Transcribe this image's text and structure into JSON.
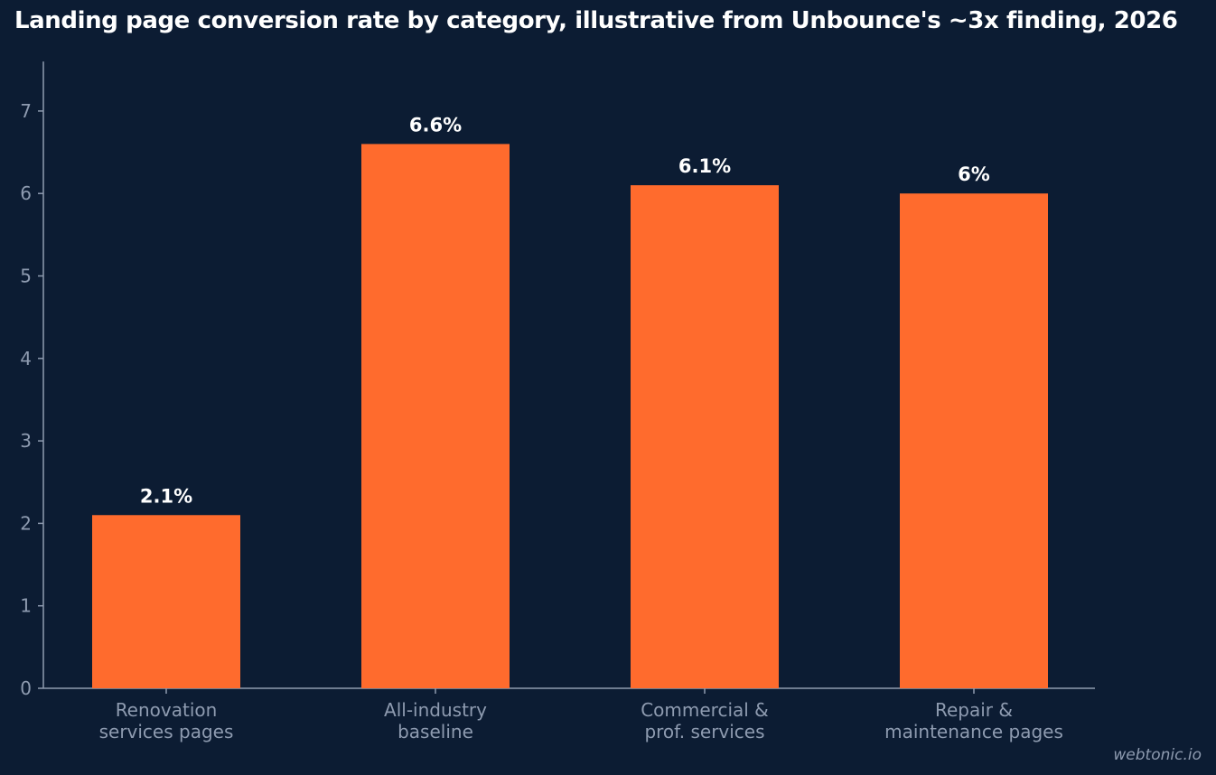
{
  "chart_data": {
    "type": "bar",
    "title": "Landing page conversion rate by category, illustrative from Unbounce's ~3x finding, 2026",
    "categories": [
      [
        "Renovation",
        "services pages"
      ],
      [
        "All-industry",
        "baseline"
      ],
      [
        "Commercial &",
        "prof. services"
      ],
      [
        "Repair &",
        "maintenance pages"
      ]
    ],
    "values": [
      2.1,
      6.6,
      6.1,
      6
    ],
    "data_labels": [
      "2.1%",
      "6.6%",
      "6.1%",
      "6%"
    ],
    "yticks": [
      "0",
      "1",
      "2",
      "3",
      "4",
      "5",
      "6",
      "7"
    ],
    "ylim": [
      0,
      7.6
    ],
    "grid": false,
    "legend": false,
    "xlabel": "",
    "ylabel": ""
  },
  "colors": {
    "background": "#0c1c33",
    "bar": "#ff6b2d",
    "axis": "#8e9bb0",
    "text": "#ffffff"
  },
  "watermark": "webtonic.io"
}
